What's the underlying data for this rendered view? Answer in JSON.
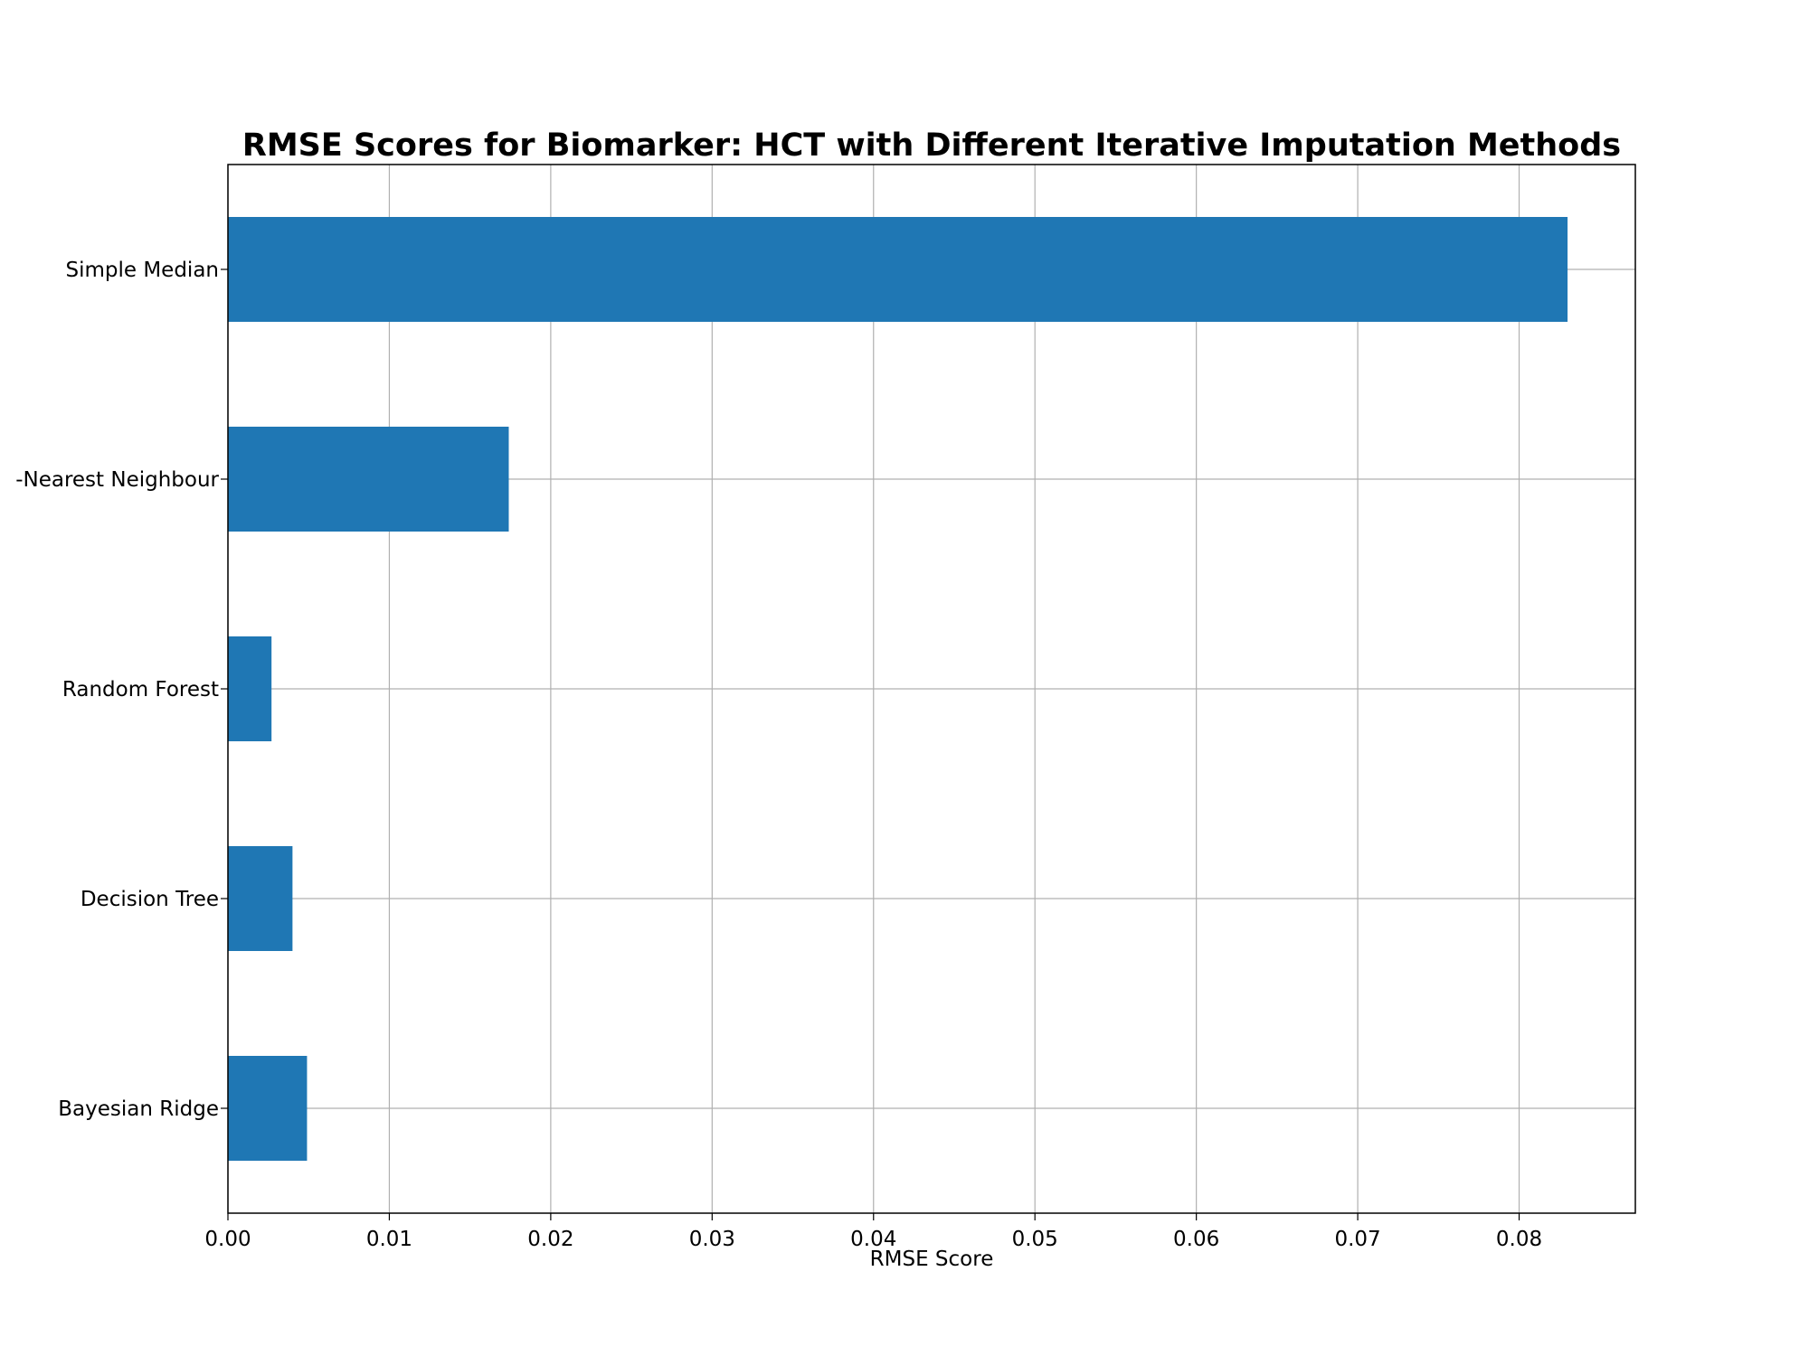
{
  "chart_data": {
    "type": "bar",
    "orientation": "horizontal",
    "title": "RMSE Scores for Biomarker: HCT with Different Iterative Imputation Methods",
    "xlabel": "RMSE Score",
    "ylabel": "",
    "categories": [
      "Bayesian Ridge",
      "Decision Tree",
      "Random Forest",
      "K-Nearest Neighbour",
      "Simple Median"
    ],
    "category_labels_visible": [
      "Bayesian Ridge",
      "Decision Tree",
      "Random Forest",
      "-Nearest Neighbour",
      "Simple Median"
    ],
    "values": [
      0.0049,
      0.004,
      0.0027,
      0.0174,
      0.083
    ],
    "xlim": [
      0,
      0.0872
    ],
    "xticks": [
      0.0,
      0.01,
      0.02,
      0.03,
      0.04,
      0.05,
      0.06,
      0.07,
      0.08
    ],
    "xtick_labels": [
      "0.00",
      "0.01",
      "0.02",
      "0.03",
      "0.04",
      "0.05",
      "0.06",
      "0.07",
      "0.08"
    ],
    "grid": true,
    "legend": "none",
    "colors": {
      "bar": "#1f77b4",
      "grid": "#b0b0b0",
      "axis": "#000000"
    }
  }
}
